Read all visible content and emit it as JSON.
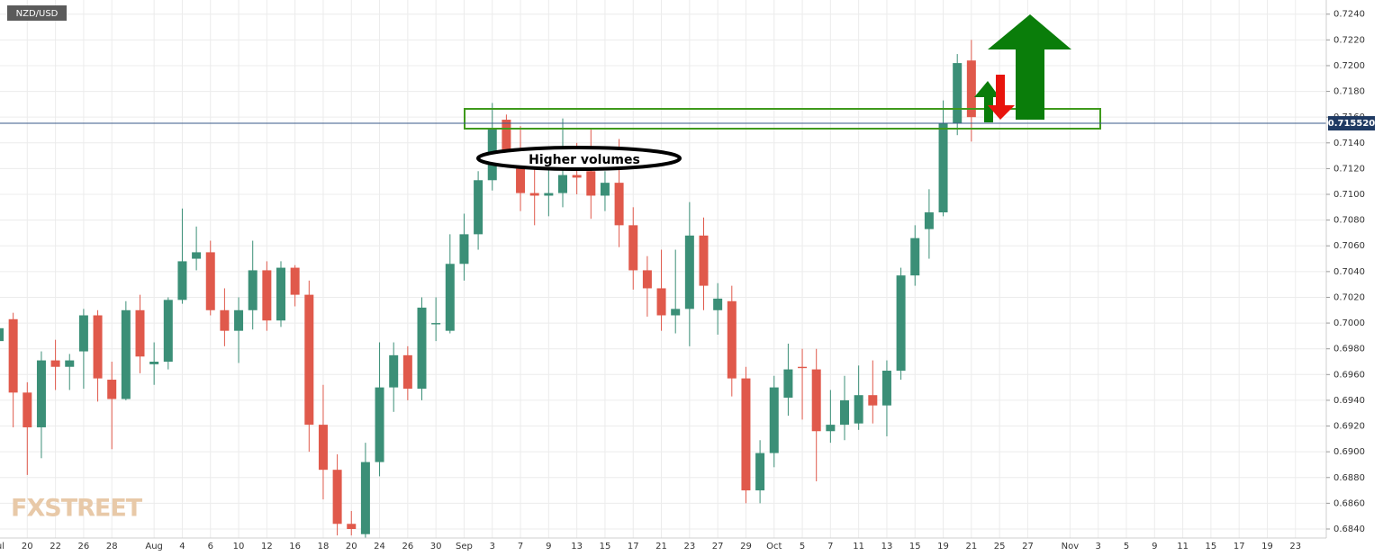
{
  "chart_data": {
    "type": "candlestick",
    "symbol": "NZD/USD",
    "watermark": "FXSTREET",
    "annotation": "Higher volumes",
    "last_price": {
      "value": 0.71552,
      "label": "0.715520"
    },
    "up_color": "#3b8f77",
    "down_color": "#e0594b",
    "grid": true,
    "categories": [
      "Jul",
      null,
      "20",
      null,
      "22",
      null,
      "26",
      null,
      "28",
      null,
      null,
      "Aug",
      null,
      "4",
      null,
      "6",
      null,
      "10",
      null,
      "12",
      null,
      "16",
      null,
      "18",
      null,
      "20",
      null,
      "24",
      null,
      "26",
      null,
      "30",
      null,
      "Sep",
      null,
      "3",
      null,
      "7",
      null,
      "9",
      null,
      "13",
      null,
      "15",
      null,
      "17",
      null,
      "21",
      null,
      "23",
      null,
      "27",
      null,
      "29",
      null,
      "Oct",
      null,
      "5",
      null,
      "7",
      null,
      "11",
      null,
      "13",
      null,
      "15",
      null,
      "19",
      null,
      "21",
      null,
      "25",
      null,
      "27",
      null,
      null,
      "Nov",
      null,
      "3",
      null,
      "5",
      null,
      "9",
      null,
      "11",
      null,
      "15",
      null,
      "17",
      null,
      "19",
      null,
      "23"
    ],
    "open": [
      0.6986,
      0.7003,
      0.6946,
      0.6919,
      0.6971,
      0.6966,
      0.6978,
      0.7006,
      0.6956,
      0.6941,
      0.701,
      0.6968,
      0.697,
      0.7018,
      0.705,
      0.7055,
      0.701,
      0.6994,
      0.701,
      0.7041,
      0.7002,
      0.7043,
      0.7022,
      0.6921,
      0.6886,
      0.6844,
      0.6836,
      0.6892,
      0.695,
      0.6975,
      0.6949,
      0.6999,
      0.6994,
      0.7046,
      0.7069,
      0.7111,
      0.7158,
      0.7129,
      0.7101,
      0.7099,
      0.7101,
      0.7115,
      0.7118,
      0.7099,
      0.7109,
      0.7076,
      0.7041,
      0.7027,
      0.7006,
      0.7011,
      0.7068,
      0.701,
      0.7017,
      0.6957,
      0.687,
      0.6899,
      0.6942,
      0.6966,
      0.6964,
      0.6916,
      0.6921,
      0.6922,
      0.6944,
      0.6936,
      0.6963,
      0.7037,
      0.7073,
      0.7086,
      0.7155,
      0.7204,
      null,
      null,
      null,
      null,
      null,
      null,
      null,
      null,
      null,
      null,
      null,
      null,
      null,
      null,
      null,
      null,
      null,
      null,
      null,
      null,
      null,
      null,
      null
    ],
    "high": [
      0.7038,
      0.7008,
      0.6954,
      0.6978,
      0.6987,
      0.6976,
      0.7011,
      0.701,
      0.697,
      0.7017,
      0.7022,
      0.6985,
      0.702,
      0.7089,
      0.7075,
      0.7064,
      0.7027,
      0.702,
      0.7064,
      0.7048,
      0.7048,
      0.7045,
      0.7033,
      0.6952,
      0.6898,
      0.6854,
      0.6907,
      0.6985,
      0.6985,
      0.6982,
      0.702,
      0.702,
      0.7069,
      0.7085,
      0.7118,
      0.7171,
      0.7162,
      0.7153,
      0.7136,
      0.7129,
      0.7159,
      0.714,
      0.7151,
      0.7118,
      0.7143,
      0.709,
      0.7052,
      0.7057,
      0.7057,
      0.7094,
      0.7082,
      0.7031,
      0.7029,
      0.6966,
      0.6909,
      0.6959,
      0.6984,
      0.698,
      0.698,
      0.6948,
      0.6959,
      0.6967,
      0.6971,
      0.6971,
      0.7043,
      0.7076,
      0.7104,
      0.7173,
      0.7209,
      0.722,
      null,
      null,
      null,
      null,
      null,
      null,
      null,
      null,
      null,
      null,
      null,
      null,
      null,
      null,
      null,
      null,
      null,
      null,
      null,
      null,
      null,
      null,
      null
    ],
    "low": [
      0.6972,
      0.6919,
      0.6882,
      0.6895,
      0.6948,
      0.6948,
      0.6949,
      0.6939,
      0.6902,
      0.694,
      0.6961,
      0.6952,
      0.6964,
      0.7015,
      0.7041,
      0.7006,
      0.6982,
      0.6969,
      0.6995,
      0.6994,
      0.6997,
      0.7013,
      0.69,
      0.6863,
      0.6835,
      0.6835,
      0.6833,
      0.6881,
      0.6931,
      0.694,
      0.694,
      0.6986,
      0.6992,
      0.7033,
      0.7057,
      0.7103,
      0.7124,
      0.7087,
      0.7076,
      0.7083,
      0.709,
      0.71,
      0.7081,
      0.7087,
      0.7059,
      0.7026,
      0.7005,
      0.6994,
      0.6992,
      0.6982,
      0.701,
      0.6991,
      0.6943,
      0.686,
      0.686,
      0.6888,
      0.6928,
      0.6925,
      0.6877,
      0.6907,
      0.6909,
      0.6917,
      0.6922,
      0.6912,
      0.6956,
      0.7029,
      0.705,
      0.7083,
      0.7146,
      0.7141,
      null,
      null,
      null,
      null,
      null,
      null,
      null,
      null,
      null,
      null,
      null,
      null,
      null,
      null,
      null,
      null,
      null,
      null,
      null,
      null,
      null,
      null,
      null
    ],
    "close": [
      0.6996,
      0.6946,
      0.6919,
      0.6971,
      0.6966,
      0.6971,
      0.7006,
      0.6957,
      0.6941,
      0.701,
      0.6974,
      0.697,
      0.7018,
      0.7048,
      0.7055,
      0.701,
      0.6994,
      0.701,
      0.7041,
      0.7002,
      0.7043,
      0.7022,
      0.6921,
      0.6886,
      0.6844,
      0.684,
      0.6892,
      0.695,
      0.6975,
      0.6949,
      0.7012,
      0.7,
      0.7046,
      0.7069,
      0.7111,
      0.7151,
      0.7129,
      0.7101,
      0.7099,
      0.7101,
      0.7115,
      0.7113,
      0.7099,
      0.7109,
      0.7076,
      0.7041,
      0.7027,
      0.7006,
      0.7011,
      0.7068,
      0.7029,
      0.7019,
      0.6957,
      0.687,
      0.6899,
      0.695,
      0.6964,
      0.6965,
      0.6916,
      0.6921,
      0.694,
      0.6944,
      0.6936,
      0.6963,
      0.7037,
      0.7066,
      0.7086,
      0.7155,
      0.7202,
      0.716,
      null,
      null,
      null,
      null,
      null,
      null,
      null,
      null,
      null,
      null,
      null,
      null,
      null,
      null,
      null,
      null,
      null,
      null,
      null,
      null,
      null,
      null,
      null
    ],
    "ylim": [
      0.6833,
      0.7251
    ],
    "yticks": [
      {
        "value": 0.684,
        "label": "0.6840"
      },
      {
        "value": 0.686,
        "label": "0.6860"
      },
      {
        "value": 0.688,
        "label": "0.6880"
      },
      {
        "value": 0.69,
        "label": "0.6900"
      },
      {
        "value": 0.692,
        "label": "0.6920"
      },
      {
        "value": 0.694,
        "label": "0.6940"
      },
      {
        "value": 0.696,
        "label": "0.6960"
      },
      {
        "value": 0.698,
        "label": "0.6980"
      },
      {
        "value": 0.7,
        "label": "0.7000"
      },
      {
        "value": 0.702,
        "label": "0.7020"
      },
      {
        "value": 0.704,
        "label": "0.7040"
      },
      {
        "value": 0.706,
        "label": "0.7060"
      },
      {
        "value": 0.708,
        "label": "0.7080"
      },
      {
        "value": 0.71,
        "label": "0.7100"
      },
      {
        "value": 0.712,
        "label": "0.7120"
      },
      {
        "value": 0.714,
        "label": "0.7140"
      },
      {
        "value": 0.716,
        "label": "0.7160"
      },
      {
        "value": 0.718,
        "label": "0.7180"
      },
      {
        "value": 0.72,
        "label": "0.7200"
      },
      {
        "value": 0.722,
        "label": "0.7220"
      },
      {
        "value": 0.724,
        "label": "0.7240"
      }
    ]
  }
}
